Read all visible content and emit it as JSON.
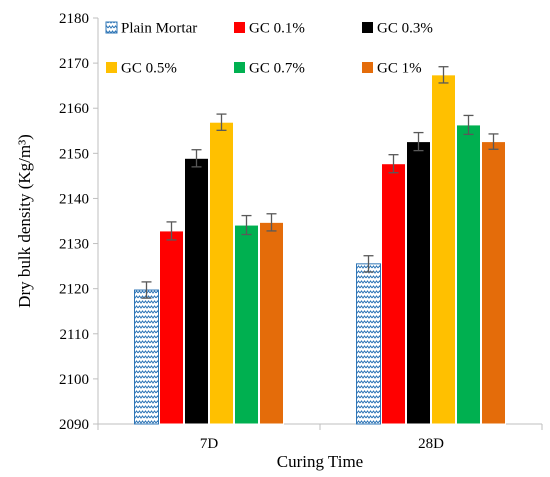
{
  "chart_data": {
    "type": "bar",
    "xlabel": "Curing Time",
    "ylabel": "Dry bulk density (Kg/m³)",
    "ylim": [
      2090,
      2180
    ],
    "yticks": [
      2090,
      2100,
      2110,
      2120,
      2130,
      2140,
      2150,
      2160,
      2170,
      2180
    ],
    "grid": false,
    "legend_position": "top",
    "categories": [
      "7D",
      "28D"
    ],
    "series": [
      {
        "name": "Plain Mortar",
        "color": "#2e75b6",
        "pattern": "wave",
        "values": [
          2119.7,
          2125.5
        ],
        "errors": [
          1.8,
          1.8
        ]
      },
      {
        "name": "GC 0.1%",
        "color": "#ff0000",
        "values": [
          2132.8,
          2147.7
        ],
        "errors": [
          2.0,
          2.0
        ]
      },
      {
        "name": "GC 0.3%",
        "color": "#000000",
        "values": [
          2148.9,
          2152.6
        ],
        "errors": [
          1.9,
          2.0
        ]
      },
      {
        "name": "GC 0.5%",
        "color": "#ffc000",
        "values": [
          2156.9,
          2167.4
        ],
        "errors": [
          1.8,
          1.8
        ]
      },
      {
        "name": "GC 0.7%",
        "color": "#00b050",
        "values": [
          2134.1,
          2156.3
        ],
        "errors": [
          2.1,
          2.1
        ]
      },
      {
        "name": "GC 1%",
        "color": "#e46c0a",
        "values": [
          2134.7,
          2152.6
        ],
        "errors": [
          1.9,
          1.7
        ]
      }
    ]
  }
}
